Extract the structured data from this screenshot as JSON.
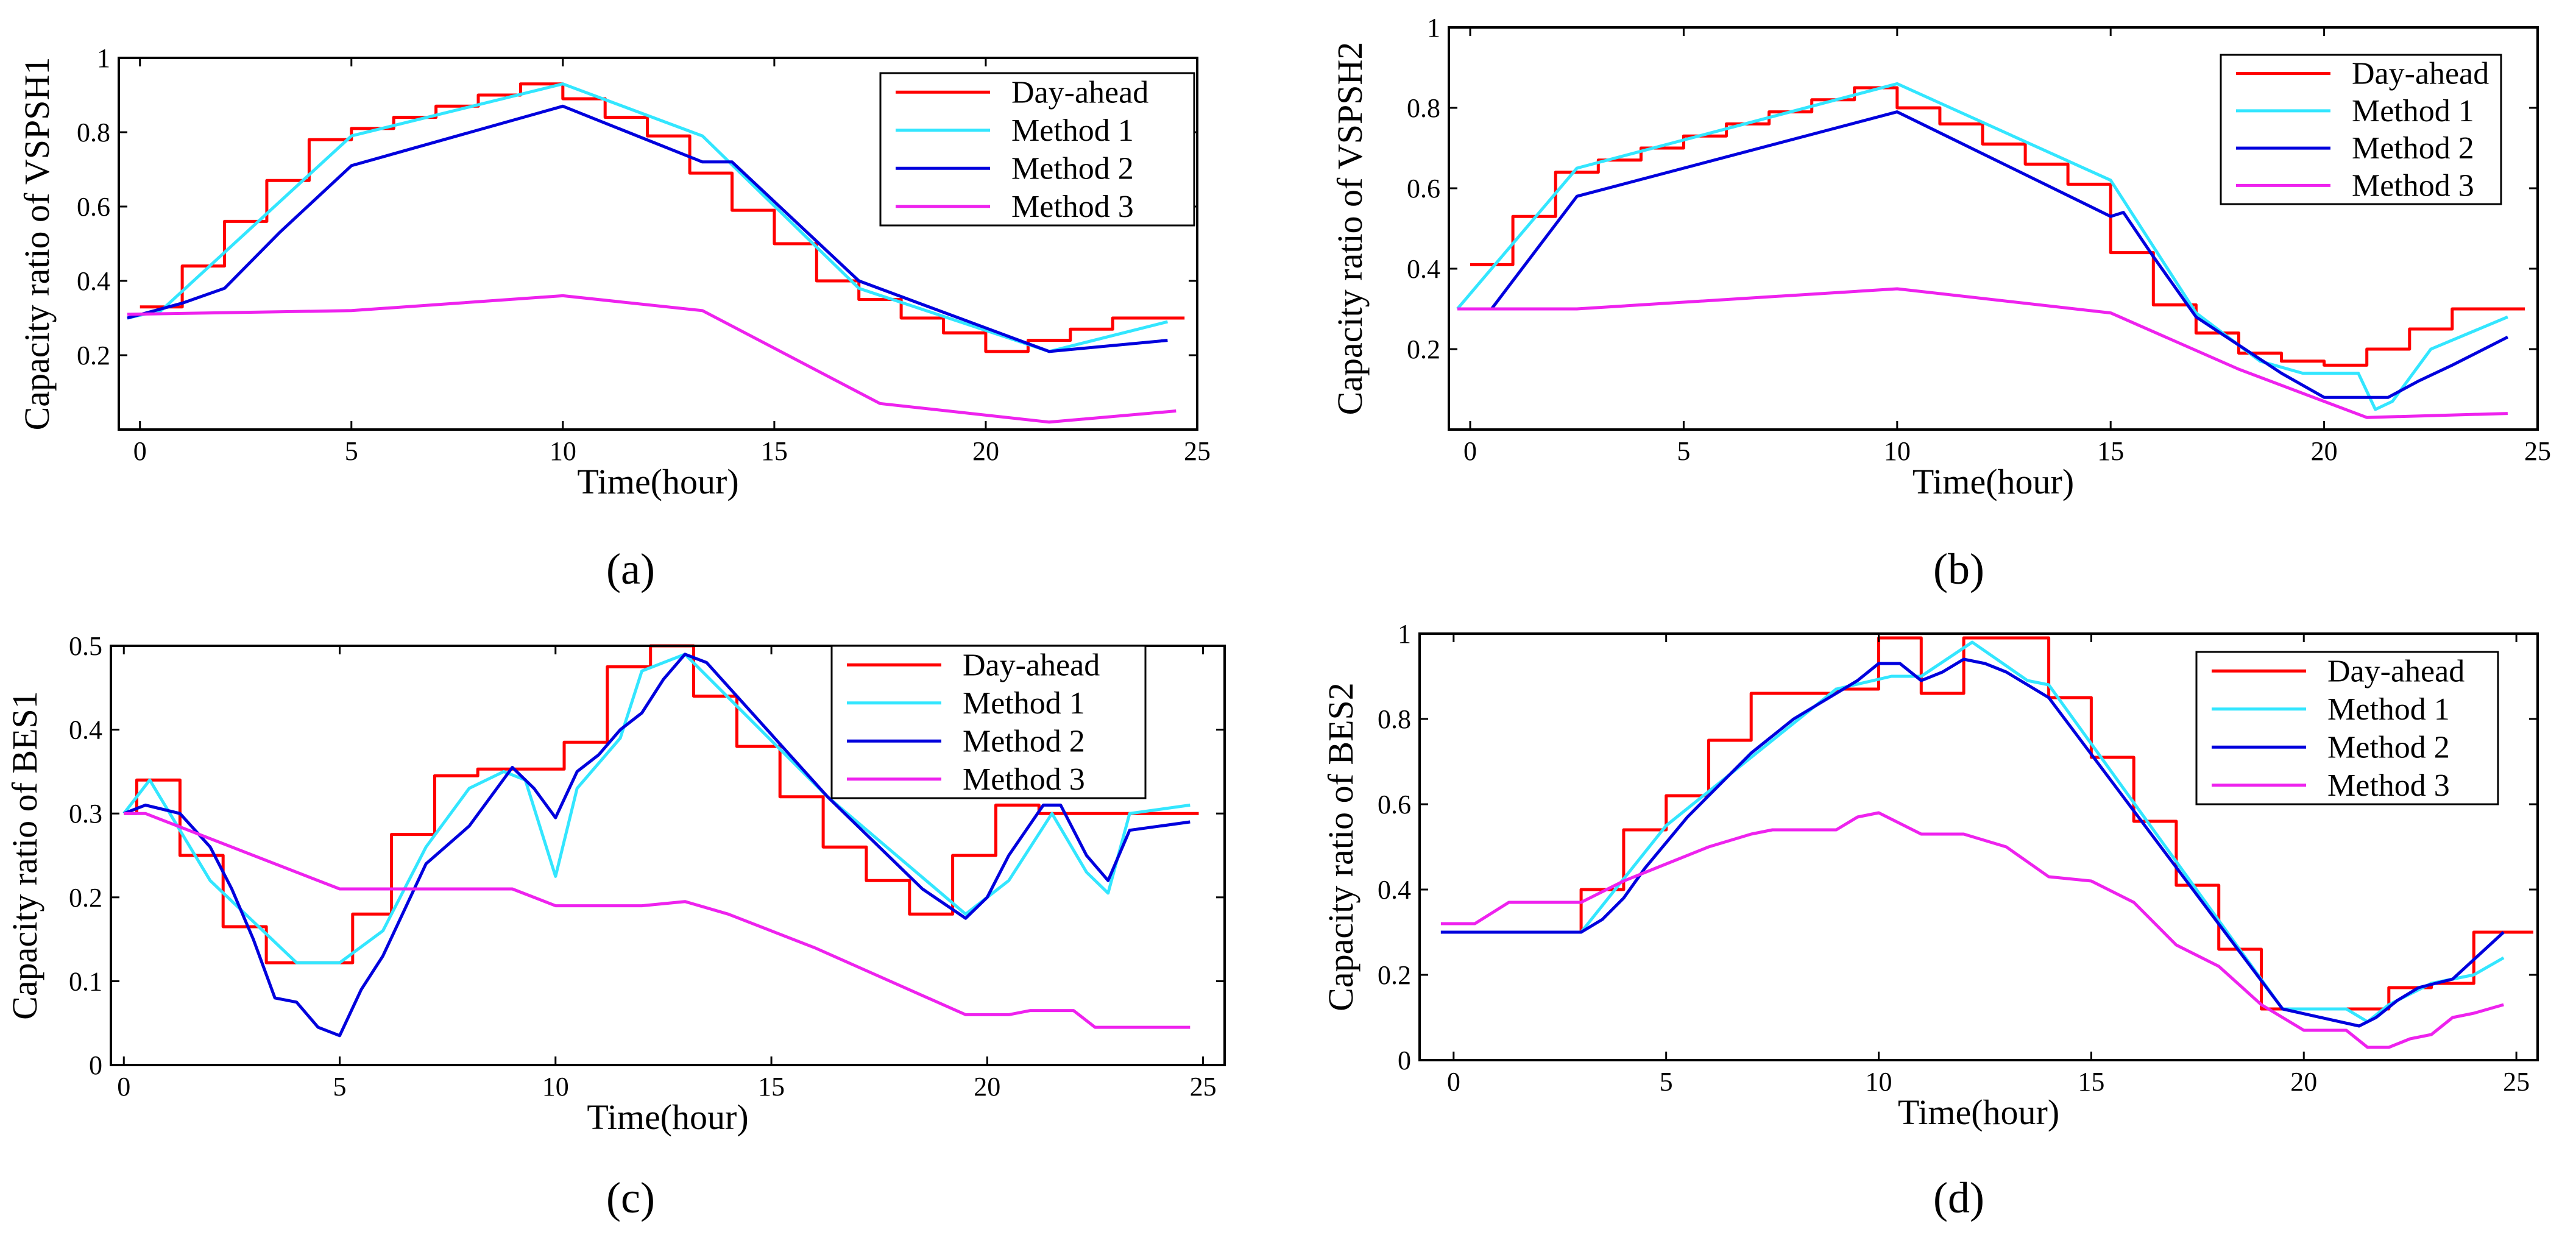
{
  "figure": {
    "captions": [
      "(a)",
      "(b)",
      "(c)",
      "(d)"
    ]
  },
  "colors": {
    "Day-ahead": "#ff0000",
    "Method 1": "#33e6ff",
    "Method 2": "#0000dd",
    "Method 3": "#ee22ee"
  },
  "chart_data": [
    {
      "type": "line",
      "panel": "a",
      "xlabel": "Time(hour)",
      "ylabel": "Capacity ratio of VSPSH1",
      "xlim": [
        -0.5,
        25
      ],
      "ylim": [
        0,
        1
      ],
      "xticks": [
        0,
        5,
        10,
        15,
        20,
        25
      ],
      "yticks": [
        0.2,
        0.4,
        0.6,
        0.8,
        1
      ],
      "ytick_labels": [
        "0.2",
        "0.4",
        "0.6",
        "0.8",
        "1"
      ],
      "legend": [
        "Day-ahead",
        "Method 1",
        "Method 2",
        "Method 3"
      ],
      "legend_position": "top-right",
      "series": [
        {
          "name": "Day-ahead",
          "step": true,
          "x": [
            0,
            1,
            2,
            3,
            4,
            5,
            6,
            7,
            8,
            9,
            10,
            11,
            12,
            13,
            14,
            15,
            16,
            17,
            18,
            19,
            20,
            21,
            22,
            23,
            24
          ],
          "y": [
            0.33,
            0.44,
            0.56,
            0.67,
            0.78,
            0.81,
            0.84,
            0.87,
            0.9,
            0.93,
            0.89,
            0.84,
            0.79,
            0.69,
            0.59,
            0.5,
            0.4,
            0.35,
            0.3,
            0.26,
            0.21,
            0.24,
            0.27,
            0.3,
            0.3
          ]
        },
        {
          "name": "Method 1",
          "x": [
            -0.3,
            0.5,
            5,
            10,
            13.3,
            17,
            21.5,
            24.3
          ],
          "y": [
            0.3,
            0.32,
            0.79,
            0.93,
            0.79,
            0.38,
            0.21,
            0.29
          ]
        },
        {
          "name": "Method 2",
          "x": [
            -0.3,
            1,
            2,
            3.3,
            5,
            10,
            13.3,
            14,
            17,
            21.5,
            24.3
          ],
          "y": [
            0.3,
            0.34,
            0.38,
            0.53,
            0.71,
            0.87,
            0.72,
            0.72,
            0.4,
            0.21,
            0.24
          ]
        },
        {
          "name": "Method 3",
          "x": [
            -0.3,
            5,
            10,
            13.3,
            17.5,
            21.5,
            24.5
          ],
          "y": [
            0.31,
            0.32,
            0.36,
            0.32,
            0.07,
            0.02,
            0.05
          ]
        }
      ]
    },
    {
      "type": "line",
      "panel": "b",
      "xlabel": "Time(hour)",
      "ylabel": "Capacity ratio of VSPSH2",
      "xlim": [
        -0.5,
        25
      ],
      "ylim": [
        0,
        1
      ],
      "xticks": [
        0,
        5,
        10,
        15,
        20,
        25
      ],
      "yticks": [
        0.2,
        0.4,
        0.6,
        0.8,
        1
      ],
      "ytick_labels": [
        "0.2",
        "0.4",
        "0.6",
        "0.8",
        "1"
      ],
      "legend": [
        "Day-ahead",
        "Method 1",
        "Method 2",
        "Method 3"
      ],
      "legend_position": "top-right",
      "series": [
        {
          "name": "Day-ahead",
          "step": true,
          "x": [
            0,
            1,
            2,
            3,
            4,
            5,
            6,
            7,
            8,
            9,
            10,
            11,
            12,
            13,
            14,
            15,
            16,
            17,
            18,
            19,
            20,
            21,
            22,
            23,
            24
          ],
          "y": [
            0.41,
            0.53,
            0.64,
            0.67,
            0.7,
            0.73,
            0.76,
            0.79,
            0.82,
            0.85,
            0.8,
            0.76,
            0.71,
            0.66,
            0.61,
            0.44,
            0.31,
            0.24,
            0.19,
            0.17,
            0.16,
            0.2,
            0.25,
            0.3,
            0.3
          ]
        },
        {
          "name": "Method 1",
          "x": [
            -0.3,
            2.5,
            10,
            15,
            17,
            18.5,
            19.5,
            20.8,
            21.2,
            21.6,
            22.5,
            24.3
          ],
          "y": [
            0.3,
            0.65,
            0.86,
            0.62,
            0.29,
            0.17,
            0.14,
            0.14,
            0.05,
            0.07,
            0.2,
            0.28
          ]
        },
        {
          "name": "Method 2",
          "x": [
            -0.3,
            0.5,
            2.5,
            10,
            15,
            15.3,
            16,
            17,
            18,
            19,
            20,
            21,
            21.5,
            22.2,
            23,
            24.3
          ],
          "y": [
            0.3,
            0.3,
            0.58,
            0.79,
            0.53,
            0.54,
            0.43,
            0.28,
            0.21,
            0.14,
            0.08,
            0.08,
            0.08,
            0.12,
            0.16,
            0.23
          ]
        },
        {
          "name": "Method 3",
          "x": [
            -0.3,
            2.5,
            10,
            15,
            18,
            21,
            24.3
          ],
          "y": [
            0.3,
            0.3,
            0.35,
            0.29,
            0.15,
            0.03,
            0.04
          ]
        }
      ]
    },
    {
      "type": "line",
      "panel": "c",
      "xlabel": "Time(hour)",
      "ylabel": "Capacity ratio of BES1",
      "xlim": [
        -0.3,
        25.5
      ],
      "ylim": [
        0,
        0.5
      ],
      "xticks": [
        0,
        5,
        10,
        15,
        20,
        25
      ],
      "yticks": [
        0,
        0.1,
        0.2,
        0.3,
        0.4,
        0.5
      ],
      "ytick_labels": [
        "0",
        "0.1",
        "0.2",
        "0.3",
        "0.4",
        "0.5"
      ],
      "legend": [
        "Day-ahead",
        "Method 1",
        "Method 2",
        "Method 3"
      ],
      "legend_position": "top-right",
      "series": [
        {
          "name": "Day-ahead",
          "step": true,
          "x": [
            0,
            0.3,
            1.3,
            2.3,
            3.3,
            4.3,
            5.3,
            6.2,
            7.2,
            8.2,
            9.2,
            10.2,
            11.2,
            12.2,
            13.2,
            14.2,
            15.2,
            16.2,
            17.2,
            18.2,
            19.2,
            20.2,
            21.2,
            22.2,
            23.2,
            24.2
          ],
          "y": [
            0.3,
            0.34,
            0.25,
            0.165,
            0.122,
            0.122,
            0.18,
            0.275,
            0.345,
            0.353,
            0.353,
            0.385,
            0.475,
            0.5,
            0.44,
            0.38,
            0.32,
            0.26,
            0.22,
            0.18,
            0.25,
            0.31,
            0.3,
            0.3,
            0.3,
            0.3
          ]
        },
        {
          "name": "Method 1",
          "x": [
            0,
            0.6,
            2,
            4,
            5,
            6,
            7,
            8,
            8.8,
            9.3,
            10,
            10.5,
            11.5,
            12,
            13,
            16.3,
            19.5,
            20.5,
            21.5,
            22.3,
            22.8,
            23.3,
            24.7
          ],
          "y": [
            0.3,
            0.34,
            0.22,
            0.122,
            0.122,
            0.16,
            0.26,
            0.33,
            0.35,
            0.34,
            0.225,
            0.33,
            0.39,
            0.47,
            0.49,
            0.32,
            0.18,
            0.22,
            0.3,
            0.23,
            0.205,
            0.3,
            0.31
          ]
        },
        {
          "name": "Method 2",
          "x": [
            0,
            0.5,
            1.3,
            2,
            2.5,
            3,
            3.5,
            4,
            4.5,
            5,
            5.5,
            6,
            7,
            8,
            9,
            9.5,
            10,
            10.5,
            11,
            11.5,
            12,
            12.5,
            13,
            13.5,
            16.3,
            18.5,
            19.5,
            20,
            20.5,
            21.3,
            21.7,
            22.3,
            22.8,
            23.3,
            24.7
          ],
          "y": [
            0.3,
            0.31,
            0.3,
            0.26,
            0.21,
            0.15,
            0.08,
            0.075,
            0.045,
            0.035,
            0.09,
            0.13,
            0.24,
            0.285,
            0.355,
            0.33,
            0.295,
            0.35,
            0.37,
            0.4,
            0.42,
            0.46,
            0.49,
            0.48,
            0.32,
            0.21,
            0.175,
            0.2,
            0.25,
            0.31,
            0.31,
            0.25,
            0.22,
            0.28,
            0.29
          ]
        },
        {
          "name": "Method 3",
          "x": [
            0,
            0.5,
            5,
            9,
            10,
            12,
            13,
            14,
            16,
            19.5,
            20.5,
            21,
            22,
            22.5,
            24.7
          ],
          "y": [
            0.3,
            0.3,
            0.21,
            0.21,
            0.19,
            0.19,
            0.195,
            0.18,
            0.14,
            0.06,
            0.06,
            0.065,
            0.065,
            0.045,
            0.045
          ]
        }
      ]
    },
    {
      "type": "line",
      "panel": "d",
      "xlabel": "Time(hour)",
      "ylabel": "Capacity ratio of BES2",
      "xlim": [
        -0.8,
        25.5
      ],
      "ylim": [
        0,
        1
      ],
      "xticks": [
        0,
        5,
        10,
        15,
        20,
        25
      ],
      "yticks": [
        0,
        0.2,
        0.4,
        0.6,
        0.8,
        1
      ],
      "ytick_labels": [
        "0",
        "0.2",
        "0.4",
        "0.6",
        "0.8",
        "1"
      ],
      "legend": [
        "Day-ahead",
        "Method 1",
        "Method 2",
        "Method 3"
      ],
      "legend_position": "top-right",
      "series": [
        {
          "name": "Day-ahead",
          "step": true,
          "x": [
            -0.3,
            3,
            4,
            5,
            6,
            7,
            8,
            9,
            10,
            11,
            12,
            13,
            14,
            15,
            16,
            17,
            18,
            19,
            20,
            21,
            22,
            23,
            24,
            24.7
          ],
          "y": [
            0.3,
            0.4,
            0.54,
            0.62,
            0.75,
            0.86,
            0.86,
            0.87,
            0.99,
            0.86,
            0.99,
            0.99,
            0.85,
            0.71,
            0.56,
            0.41,
            0.26,
            0.12,
            0.12,
            0.12,
            0.17,
            0.18,
            0.3,
            0.3
          ]
        },
        {
          "name": "Method 1",
          "x": [
            -0.3,
            3,
            5,
            9,
            10.3,
            11,
            12.2,
            13.5,
            14,
            19.5,
            21,
            21.5,
            22,
            23,
            24,
            24.7
          ],
          "y": [
            0.3,
            0.3,
            0.55,
            0.87,
            0.9,
            0.9,
            0.98,
            0.89,
            0.88,
            0.12,
            0.12,
            0.09,
            0.13,
            0.18,
            0.2,
            0.24
          ]
        },
        {
          "name": "Method 2",
          "x": [
            -0.3,
            3,
            3.5,
            4,
            4.5,
            5,
            5.5,
            6,
            6.5,
            7,
            7.5,
            8,
            8.5,
            9,
            9.5,
            10,
            10.5,
            11,
            11.5,
            12,
            12.5,
            13,
            14,
            19.5,
            21.3,
            21.7,
            22.2,
            22.7,
            23.5,
            24.7
          ],
          "y": [
            0.3,
            0.3,
            0.33,
            0.38,
            0.45,
            0.51,
            0.57,
            0.62,
            0.67,
            0.72,
            0.76,
            0.8,
            0.83,
            0.86,
            0.89,
            0.93,
            0.93,
            0.89,
            0.91,
            0.94,
            0.93,
            0.91,
            0.85,
            0.12,
            0.08,
            0.1,
            0.14,
            0.17,
            0.19,
            0.3
          ]
        },
        {
          "name": "Method 3",
          "x": [
            -0.3,
            0.5,
            1.3,
            3,
            4,
            5,
            6,
            7,
            7.5,
            9,
            9.5,
            10,
            11,
            12,
            13,
            14,
            15,
            16,
            17,
            18,
            19,
            20,
            21,
            21.5,
            22,
            22.5,
            23,
            23.5,
            24,
            24.7
          ],
          "y": [
            0.32,
            0.32,
            0.37,
            0.37,
            0.42,
            0.46,
            0.5,
            0.53,
            0.54,
            0.54,
            0.57,
            0.58,
            0.53,
            0.53,
            0.5,
            0.43,
            0.42,
            0.37,
            0.27,
            0.22,
            0.13,
            0.07,
            0.07,
            0.03,
            0.03,
            0.05,
            0.06,
            0.1,
            0.11,
            0.13
          ]
        }
      ]
    }
  ]
}
